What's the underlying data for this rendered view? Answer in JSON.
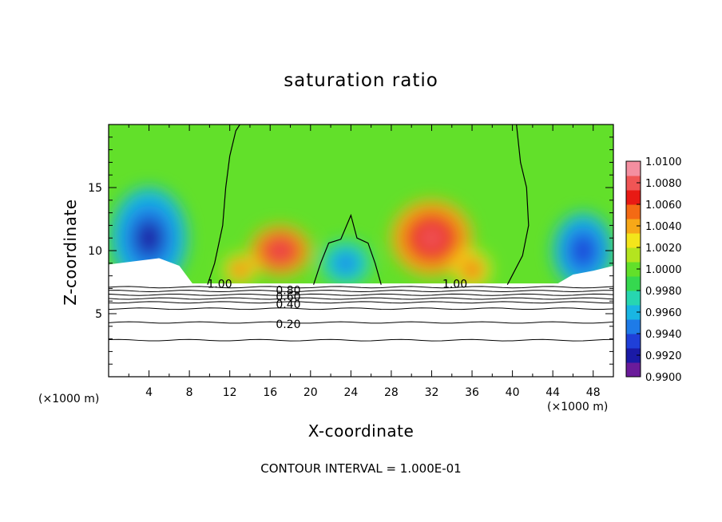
{
  "chart_data": {
    "type": "heatmap",
    "title": "saturation ratio",
    "xlabel": "X-coordinate",
    "ylabel": "Z-coordinate",
    "x_unit": "(×1000 m)",
    "footer": "CONTOUR INTERVAL = 1.000E-01",
    "xlim": [
      0,
      50
    ],
    "ylim": [
      0,
      20
    ],
    "xticks": [
      4,
      8,
      12,
      16,
      20,
      24,
      28,
      32,
      36,
      40,
      44,
      48
    ],
    "yticks": [
      5,
      10,
      15
    ],
    "colorbar": {
      "min": 0.99,
      "max": 1.01,
      "ticks": [
        "1.0100",
        "1.0080",
        "1.0060",
        "1.0040",
        "1.0020",
        "1.0000",
        "0.9980",
        "0.9960",
        "0.9940",
        "0.9920",
        "0.9900"
      ],
      "colors": [
        "#6a1b9a",
        "#1a1aa6",
        "#1f3fd8",
        "#1e7be8",
        "#19b6e3",
        "#27d6b0",
        "#35d84f",
        "#62e02a",
        "#b4e41f",
        "#f3e51b",
        "#f7a818",
        "#f46a14",
        "#e81a14",
        "#f05555",
        "#f48fa0"
      ]
    },
    "contours": [
      {
        "label": "1.00",
        "level": 1.0
      },
      {
        "label": "0.80",
        "level": 0.8
      },
      {
        "label": "0.60",
        "level": 0.6
      },
      {
        "label": "0.40",
        "level": 0.4
      },
      {
        "label": "0.20",
        "level": 0.2
      }
    ],
    "contour_labels": [
      {
        "text": "1.00",
        "x": 11.0,
        "y": 7.3
      },
      {
        "text": "0.80",
        "x": 17.8,
        "y": 6.8
      },
      {
        "text": "0.60",
        "x": 17.8,
        "y": 6.3
      },
      {
        "text": "0.40",
        "x": 17.8,
        "y": 5.7
      },
      {
        "text": "0.20",
        "x": 17.8,
        "y": 4.1
      },
      {
        "text": "1.00",
        "x": 34.3,
        "y": 7.3
      }
    ],
    "features": {
      "blobs": [
        {
          "x": 17,
          "y": 10.0,
          "rx": 3.0,
          "ry": 2.0,
          "value": 1.0085
        },
        {
          "x": 32,
          "y": 11.0,
          "rx": 4.0,
          "ry": 3.0,
          "value": 1.0085
        },
        {
          "x": 13,
          "y": 8.5,
          "rx": 1.6,
          "ry": 1.2,
          "value": 1.006
        },
        {
          "x": 36,
          "y": 8.5,
          "rx": 1.8,
          "ry": 1.5,
          "value": 1.006
        },
        {
          "x": 4,
          "y": 11.0,
          "rx": 3.8,
          "ry": 4.0,
          "value": 0.992
        },
        {
          "x": 47,
          "y": 10.0,
          "rx": 3.0,
          "ry": 3.0,
          "value": 0.993
        },
        {
          "x": 23.5,
          "y": 9.0,
          "rx": 2.5,
          "ry": 1.8,
          "value": 0.995
        }
      ]
    }
  }
}
